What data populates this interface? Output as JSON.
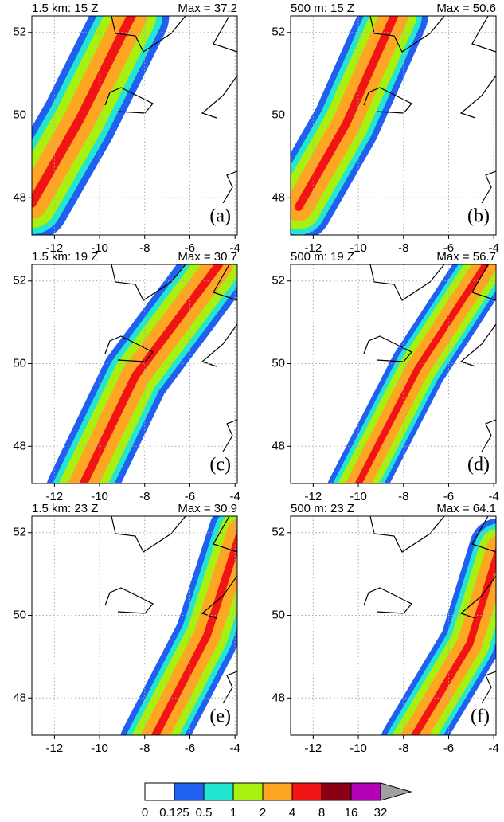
{
  "panels": [
    {
      "title": "1.5 km: 15 Z",
      "max_label": "Max = 37.2",
      "label": "(a)"
    },
    {
      "title": "500 m: 15 Z",
      "max_label": "Max = 50.6",
      "label": "(b)"
    },
    {
      "title": "1.5 km: 19 Z",
      "max_label": "Max = 30.7",
      "label": "(c)"
    },
    {
      "title": "500 m: 19 Z",
      "max_label": "Max = 56.7",
      "label": "(d)"
    },
    {
      "title": "1.5 km: 23 Z",
      "max_label": "Max = 30.9",
      "label": "(e)"
    },
    {
      "title": "500 m: 23 Z",
      "max_label": "Max = 64.1",
      "label": "(f)"
    }
  ],
  "lon_range": [
    -13,
    -3.9
  ],
  "lat_range": [
    47.1,
    52.4
  ],
  "lon_ticks": [
    -12,
    -10,
    -8,
    -6,
    -4
  ],
  "lat_ticks": [
    48,
    50,
    52
  ],
  "colorbar": {
    "levels": [
      0,
      0.125,
      0.5,
      1,
      2,
      4,
      8,
      16,
      32
    ],
    "colors": [
      "#ffffff",
      "#1f5ff2",
      "#22e6d2",
      "#a8f010",
      "#ffa524",
      "#f01414",
      "#8a0014",
      "#b400b4",
      "#a0a0a0"
    ]
  }
}
